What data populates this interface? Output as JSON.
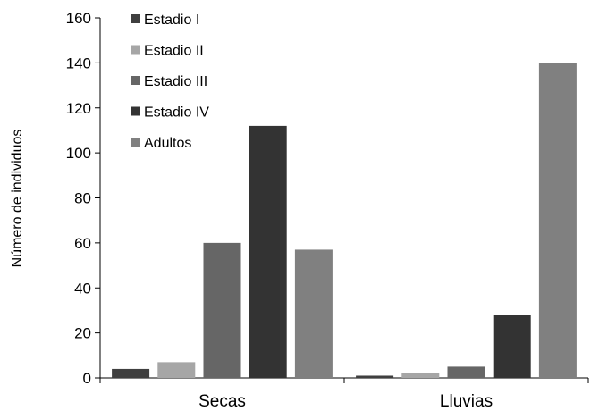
{
  "chart_data": {
    "type": "bar",
    "categories": [
      "Secas",
      "Lluvias"
    ],
    "series": [
      {
        "name": "Estadio I",
        "values": [
          4,
          1
        ],
        "color": "#3f3f3f"
      },
      {
        "name": "Estadio II",
        "values": [
          7,
          2
        ],
        "color": "#a6a6a6"
      },
      {
        "name": "Estadio III",
        "values": [
          60,
          5
        ],
        "color": "#666666"
      },
      {
        "name": "Estadio IV",
        "values": [
          112,
          28
        ],
        "color": "#333333"
      },
      {
        "name": "Adultos",
        "values": [
          57,
          140
        ],
        "color": "#808080"
      }
    ],
    "title": "",
    "xlabel": "",
    "ylabel": "Número de individuos",
    "ylim": [
      0,
      160
    ],
    "yticks": [
      0,
      20,
      40,
      60,
      80,
      100,
      120,
      140,
      160
    ],
    "grid": false,
    "legend_position": "top-left"
  }
}
